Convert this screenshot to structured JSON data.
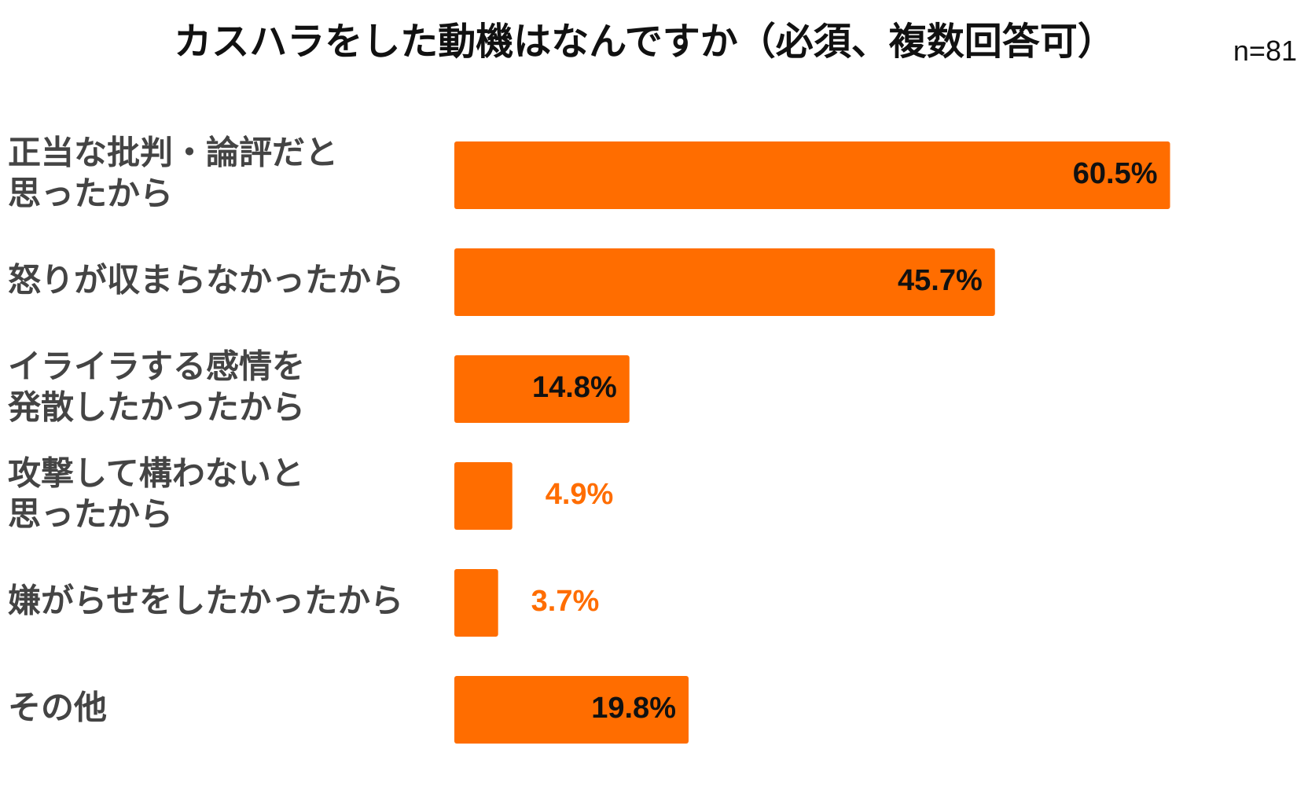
{
  "chart_data": {
    "type": "bar",
    "orientation": "horizontal",
    "title": "カスハラをした動機はなんですか（必須、複数回答可）",
    "sample_size": "n=81",
    "categories": [
      [
        "正当な批判・論評だと",
        "思ったから"
      ],
      [
        "怒りが収まらなかったから"
      ],
      [
        "イライラする感情を",
        "発散したかったから"
      ],
      [
        "攻撃して構わないと",
        "思ったから"
      ],
      [
        "嫌がらせをしたかったから"
      ],
      [
        "その他"
      ]
    ],
    "values": [
      60.5,
      45.7,
      14.8,
      4.9,
      3.7,
      19.8
    ],
    "value_labels": [
      "60.5%",
      "45.7%",
      "14.8%",
      "4.9%",
      "3.7%",
      "19.8%"
    ],
    "xlim": [
      0,
      100
    ],
    "unit": "%",
    "grid": false,
    "legend": "none",
    "bar_color": "#ff6d00",
    "label_inside_color": "#111111",
    "label_outside_color": "#ff6d00",
    "category_color": "#444444"
  }
}
